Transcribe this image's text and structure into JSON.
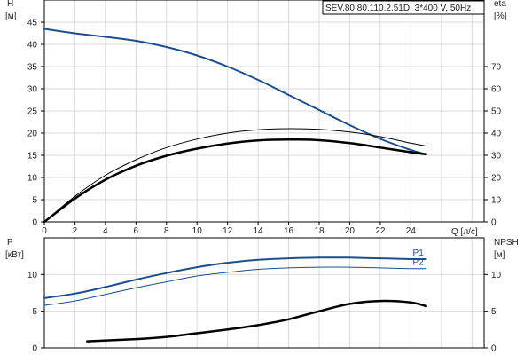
{
  "title": "SEV.80.80.110.2.51D, 3*400 V, 50Hz",
  "chart_data": [
    {
      "type": "line",
      "name": "head-efficiency",
      "xlabel": "Q [л/с]",
      "left_axis": {
        "label_line1": "H",
        "label_line2": "[м]",
        "range": [
          0,
          50
        ],
        "ticks": [
          0,
          5,
          10,
          15,
          20,
          25,
          30,
          35,
          40,
          45
        ]
      },
      "right_axis": {
        "label_line1": "eta",
        "label_line2": "[%]",
        "range": [
          0,
          100
        ],
        "ticks": [
          0,
          10,
          20,
          30,
          40,
          50,
          60,
          70
        ]
      },
      "xlim": [
        0,
        28.8
      ],
      "xticks": [
        0,
        2,
        4,
        6,
        8,
        10,
        12,
        14,
        16,
        18,
        20,
        22,
        24
      ],
      "grid": true,
      "series": [
        {
          "color": "#1f4e8c",
          "axis": "left",
          "width": 2,
          "x": [
            0,
            2,
            4,
            6,
            8,
            10,
            12,
            14,
            16,
            18,
            20,
            22,
            24,
            25
          ],
          "y": [
            43.5,
            42.5,
            41.7,
            40.8,
            39.4,
            37.5,
            35.0,
            32.0,
            28.6,
            25.2,
            21.8,
            18.7,
            16.2,
            15.2
          ]
        },
        {
          "color": "#000000",
          "axis": "right",
          "width": 1,
          "x": [
            0,
            2,
            4,
            6,
            8,
            10,
            12,
            14,
            16,
            18,
            20,
            22,
            24,
            25
          ],
          "y": [
            0,
            11.5,
            21.0,
            28.0,
            33.5,
            37.3,
            40.0,
            41.5,
            42.0,
            41.7,
            40.5,
            38.4,
            35.5,
            34.2
          ]
        },
        {
          "color": "#000000",
          "axis": "right",
          "width": 2.5,
          "x": [
            0,
            2,
            4,
            6,
            8,
            10,
            12,
            14,
            16,
            18,
            20,
            22,
            24,
            25
          ],
          "y": [
            0,
            10.5,
            19.0,
            25.3,
            29.8,
            33.0,
            35.3,
            36.7,
            37.1,
            36.8,
            35.5,
            33.5,
            31.4,
            30.5
          ]
        }
      ]
    },
    {
      "type": "line",
      "name": "power-npsh",
      "left_axis": {
        "label_line1": "P",
        "label_line2": "[кВт]",
        "range": [
          0,
          15
        ],
        "ticks": [
          0,
          5,
          10
        ]
      },
      "right_axis": {
        "label_line1": "NPSH",
        "label_line2": "[м]",
        "range": [
          0,
          15
        ],
        "ticks": [
          0,
          5,
          10
        ]
      },
      "xlim": [
        0,
        28.8
      ],
      "grid": true,
      "series": [
        {
          "name": "P1",
          "color": "#1f4e8c",
          "axis": "left",
          "width": 2,
          "x": [
            0,
            2,
            4,
            6,
            8,
            10,
            12,
            14,
            16,
            18,
            20,
            22,
            24,
            25
          ],
          "y": [
            6.8,
            7.4,
            8.3,
            9.3,
            10.2,
            11.0,
            11.6,
            12.0,
            12.2,
            12.3,
            12.3,
            12.2,
            12.1,
            12.1
          ]
        },
        {
          "name": "P2",
          "color": "#1f4e8c",
          "axis": "left",
          "width": 1,
          "x": [
            0,
            2,
            4,
            6,
            8,
            10,
            12,
            14,
            16,
            18,
            20,
            22,
            24,
            25
          ],
          "y": [
            5.8,
            6.4,
            7.3,
            8.2,
            9.0,
            9.8,
            10.3,
            10.7,
            10.9,
            11.0,
            11.0,
            10.9,
            10.8,
            10.8
          ]
        },
        {
          "color": "#000000",
          "axis": "right",
          "width": 2.5,
          "x": [
            2.8,
            6,
            8,
            10,
            12,
            14,
            16,
            18,
            20,
            22,
            24,
            25
          ],
          "y": [
            0.9,
            1.2,
            1.5,
            2.0,
            2.5,
            3.1,
            3.9,
            5.0,
            6.0,
            6.4,
            6.2,
            5.7
          ]
        }
      ]
    }
  ]
}
